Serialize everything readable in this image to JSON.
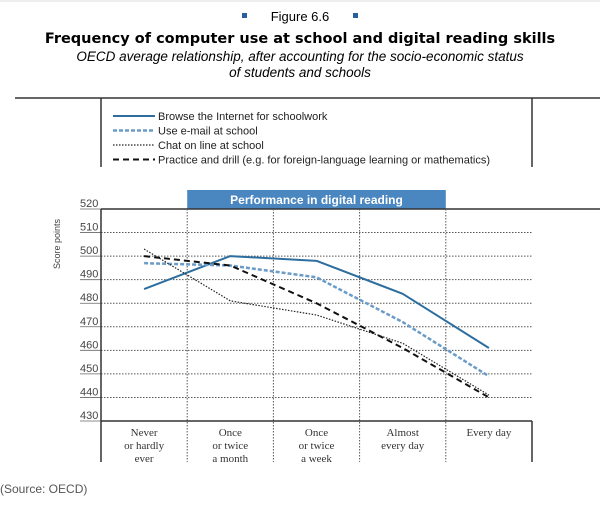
{
  "figure_label": "Figure 6.6",
  "source": "(Source: OECD)",
  "colors": {
    "browse": "#2e6e9e",
    "email": "#6b9cc8",
    "chat": "#222222",
    "practice": "#111111",
    "banner": "#4a86c0",
    "marker": "#2a5f9e"
  },
  "chart_data": {
    "type": "line",
    "title": "Frequency of computer use at school and digital reading skills",
    "subtitle_line1": "OECD average relationship, after accounting for the socio-economic status",
    "subtitle_line2": "of students and schools",
    "banner": "Performance in digital reading",
    "ylabel": "Score points",
    "xlabel": "",
    "ylim": [
      430,
      520
    ],
    "yticks": [
      430,
      440,
      450,
      460,
      470,
      480,
      490,
      500,
      510,
      520
    ],
    "grid": true,
    "legend_placement": "top",
    "categories": [
      [
        "Never",
        "or hardly",
        "ever"
      ],
      [
        "Once",
        "or twice",
        "a month"
      ],
      [
        "Once",
        "or twice",
        "a week"
      ],
      [
        "Almost",
        "every day"
      ],
      [
        "Every day"
      ]
    ],
    "series": [
      {
        "name": "Browse the Internet for schoolwork",
        "style": "solid",
        "values": [
          486,
          500,
          498,
          484,
          461
        ]
      },
      {
        "name": "Use e-mail at school",
        "style": "dashed-blue",
        "values": [
          497,
          496,
          491,
          472,
          449
        ]
      },
      {
        "name": "Chat on line at school",
        "style": "dotted",
        "values": [
          503,
          481,
          475,
          463,
          441
        ]
      },
      {
        "name": "Practice and drill (e.g. for foreign-language learning or mathematics)",
        "style": "dashed",
        "values": [
          500,
          496,
          480,
          461,
          440
        ]
      }
    ]
  }
}
